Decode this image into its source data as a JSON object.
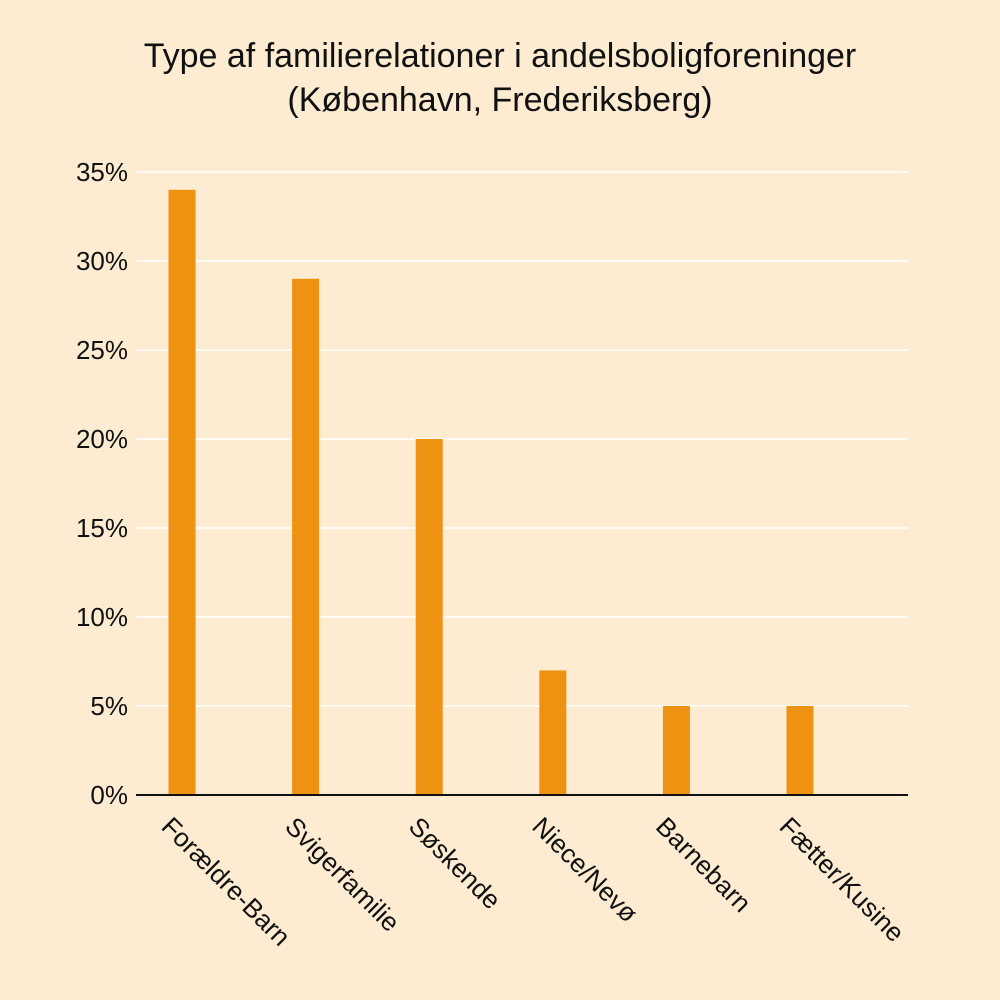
{
  "colors": {
    "background": "#fdebd2",
    "bar": "#f09211",
    "gridline": "#ffffff",
    "axis": "#111111",
    "text": "#111111"
  },
  "chart_data": {
    "type": "bar",
    "title": "Type af familierelationer i andelsboligforeninger",
    "subtitle": "(København, Frederiksberg)",
    "categories": [
      "Forældre-Barn",
      "Svigerfamilie",
      "Søskende",
      "Niece/Nevø",
      "Barnebarn",
      "Fætter/Kusine"
    ],
    "values": [
      34,
      29,
      20,
      7,
      5,
      5
    ],
    "ylim": [
      0,
      35
    ],
    "y_ticks": [
      0,
      5,
      10,
      15,
      20,
      25,
      30,
      35
    ],
    "y_tick_labels": [
      "0%",
      "5%",
      "10%",
      "15%",
      "20%",
      "25%",
      "30%",
      "35%"
    ],
    "grid": true,
    "x_label_rotation": "45 degrees clockwise"
  }
}
